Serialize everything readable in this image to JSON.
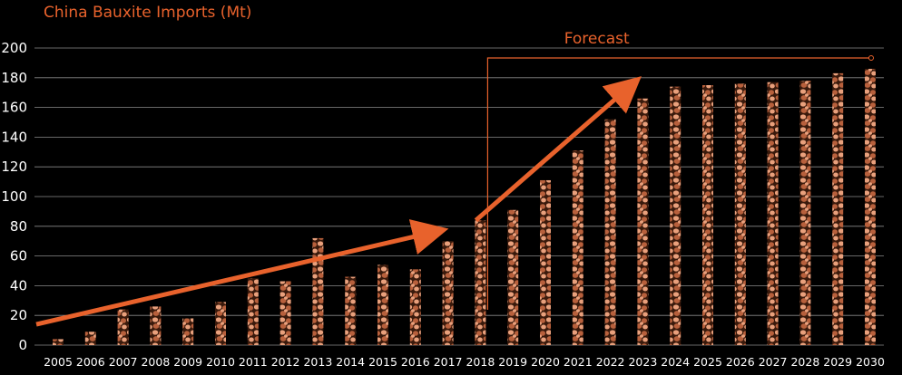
{
  "colors": {
    "background": "#000000",
    "accent": "#e8622c",
    "grid": "#8a8a8a",
    "text": "#ffffff",
    "bar_light": "#e9a07c",
    "bar_mid": "#b8603c",
    "bar_dark": "#3a1a0c"
  },
  "chart_data": {
    "type": "bar",
    "title": "China Bauxite Imports (Mt)",
    "xlabel": "",
    "ylabel": "",
    "ylim": [
      0,
      200
    ],
    "yticks": [
      0,
      20,
      40,
      60,
      80,
      100,
      120,
      140,
      160,
      180,
      200
    ],
    "grid": true,
    "bar_texture": "bauxite-pebbles",
    "categories": [
      "2005",
      "2006",
      "2007",
      "2008",
      "2009",
      "2010",
      "2011",
      "2012",
      "2013",
      "2014",
      "2015",
      "2016",
      "2017",
      "2018",
      "2019",
      "2020",
      "2021",
      "2022",
      "2023",
      "2024",
      "2025",
      "2026",
      "2027",
      "2028",
      "2029",
      "2030"
    ],
    "values": [
      4,
      9,
      24,
      26,
      18,
      29,
      45,
      43,
      72,
      46,
      54,
      51,
      70,
      84,
      91,
      111,
      131,
      152,
      166,
      174,
      175,
      176,
      177,
      178,
      183,
      186
    ],
    "annotations": {
      "forecast_label": "Forecast",
      "forecast_start": "2018",
      "forecast_end": "2030",
      "trend_arrows": [
        {
          "from": [
            "2005",
            14
          ],
          "to": [
            "2017",
            77
          ]
        },
        {
          "from": [
            "2018",
            84
          ],
          "to": [
            "2023",
            177
          ]
        }
      ]
    }
  }
}
